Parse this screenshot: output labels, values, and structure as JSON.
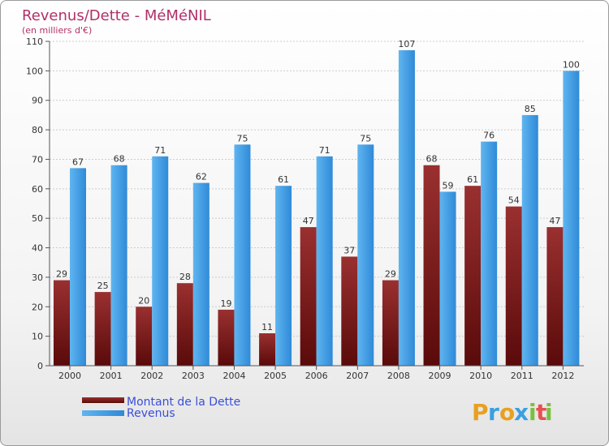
{
  "chart_data": {
    "type": "bar",
    "title": "Revenus/Dette - MéMéNIL",
    "subtitle": "(en milliers d'€)",
    "categories": [
      "2000",
      "2001",
      "2002",
      "2003",
      "2004",
      "2005",
      "2006",
      "2007",
      "2008",
      "2009",
      "2010",
      "2011",
      "2012"
    ],
    "series": [
      {
        "name": "Montant de la Dette",
        "color": "#7a1a1a",
        "values": [
          29,
          25,
          20,
          28,
          19,
          11,
          47,
          37,
          29,
          68,
          61,
          54,
          47
        ]
      },
      {
        "name": "Revenus",
        "color": "#4aa3e6",
        "values": [
          67,
          68,
          71,
          62,
          75,
          61,
          71,
          75,
          107,
          59,
          76,
          85,
          100
        ]
      }
    ],
    "ylim": [
      0,
      110
    ],
    "yticks": [
      0,
      10,
      20,
      30,
      40,
      50,
      60,
      70,
      80,
      90,
      100,
      110
    ],
    "grid": true,
    "legend_position": "bottom-left"
  },
  "logo": {
    "letters": [
      "P",
      "r",
      "o",
      "x",
      "i",
      "t",
      "i"
    ],
    "colors": [
      "#e8a020",
      "#3aa0e0",
      "#e8a020",
      "#3aa0e0",
      "#7ac040",
      "#e85050",
      "#7ac040"
    ]
  }
}
